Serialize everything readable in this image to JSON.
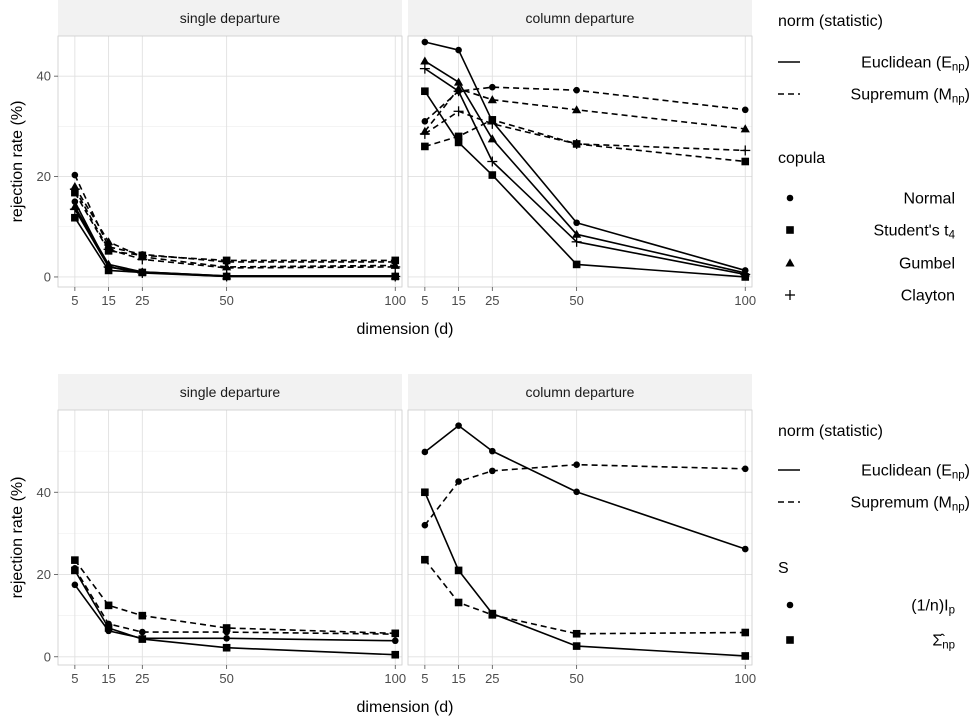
{
  "chart_data": [
    {
      "type": "line",
      "panels": [
        "single departure",
        "column departure"
      ],
      "xlabel": "dimension (d)",
      "ylabel": "rejection rate (%)",
      "x": [
        5,
        15,
        25,
        50,
        100
      ],
      "xlim": [
        0,
        102
      ],
      "ylim": [
        -2,
        48
      ],
      "y_ticks": [
        0,
        20,
        40
      ],
      "grid": true,
      "legend": {
        "placement": "right",
        "norm_title": "norm (statistic)",
        "norm_entries": [
          {
            "key": "euclidean",
            "label_main": "Euclidean (E",
            "label_sub": "np",
            "label_end": ")",
            "dash": "solid"
          },
          {
            "key": "supremum",
            "label_main": "Supremum (M",
            "label_sub": "np",
            "label_end": ")",
            "dash": "dashed"
          }
        ],
        "group_title": "copula",
        "group_entries": [
          {
            "key": "normal",
            "label_main": "Normal",
            "label_sub": "",
            "label_end": "",
            "shape": "circle"
          },
          {
            "key": "student",
            "label_main": "Student's t",
            "label_sub": "4",
            "label_end": "",
            "shape": "square"
          },
          {
            "key": "gumbel",
            "label_main": "Gumbel",
            "label_sub": "",
            "label_end": "",
            "shape": "triangle"
          },
          {
            "key": "clayton",
            "label_main": "Clayton",
            "label_sub": "",
            "label_end": "",
            "shape": "plus"
          }
        ]
      },
      "series": [
        {
          "panel": "single departure",
          "norm": "euclidean",
          "group": "normal",
          "values": [
            15.0,
            2.0,
            1.0,
            0.2,
            0.2
          ]
        },
        {
          "panel": "single departure",
          "norm": "euclidean",
          "group": "student",
          "values": [
            11.8,
            1.3,
            0.9,
            0.1,
            0.1
          ]
        },
        {
          "panel": "single departure",
          "norm": "euclidean",
          "group": "gumbel",
          "values": [
            14.0,
            2.5,
            1.0,
            0.2,
            0.2
          ]
        },
        {
          "panel": "single departure",
          "norm": "euclidean",
          "group": "clayton",
          "values": [
            13.5,
            2.0,
            0.8,
            0.1,
            0.1
          ]
        },
        {
          "panel": "single departure",
          "norm": "supremum",
          "group": "normal",
          "values": [
            20.3,
            6.0,
            4.5,
            3.0,
            3.0
          ]
        },
        {
          "panel": "single departure",
          "norm": "supremum",
          "group": "student",
          "values": [
            16.8,
            5.2,
            4.3,
            3.3,
            3.3
          ]
        },
        {
          "panel": "single departure",
          "norm": "supremum",
          "group": "gumbel",
          "values": [
            18.0,
            7.0,
            4.0,
            2.0,
            2.3
          ]
        },
        {
          "panel": "single departure",
          "norm": "supremum",
          "group": "clayton",
          "values": [
            17.5,
            5.5,
            3.5,
            1.8,
            2.0
          ]
        },
        {
          "panel": "column departure",
          "norm": "euclidean",
          "group": "normal",
          "values": [
            46.8,
            45.2,
            31.0,
            10.8,
            1.3
          ]
        },
        {
          "panel": "column departure",
          "norm": "euclidean",
          "group": "student",
          "values": [
            37.0,
            26.8,
            20.3,
            2.5,
            0.0
          ]
        },
        {
          "panel": "column departure",
          "norm": "euclidean",
          "group": "gumbel",
          "values": [
            43.0,
            38.8,
            27.5,
            8.5,
            0.8
          ]
        },
        {
          "panel": "column departure",
          "norm": "euclidean",
          "group": "clayton",
          "values": [
            41.5,
            37.0,
            23.0,
            7.0,
            0.5
          ]
        },
        {
          "panel": "column departure",
          "norm": "supremum",
          "group": "normal",
          "values": [
            31.0,
            37.0,
            37.8,
            37.2,
            33.3
          ]
        },
        {
          "panel": "column departure",
          "norm": "supremum",
          "group": "student",
          "values": [
            26.0,
            28.0,
            31.3,
            26.5,
            23.0
          ]
        },
        {
          "panel": "column departure",
          "norm": "supremum",
          "group": "gumbel",
          "values": [
            29.0,
            37.5,
            35.3,
            33.3,
            29.5
          ]
        },
        {
          "panel": "column departure",
          "norm": "supremum",
          "group": "clayton",
          "values": [
            28.5,
            33.0,
            30.5,
            26.5,
            25.2
          ]
        }
      ]
    },
    {
      "type": "line",
      "panels": [
        "single departure",
        "column departure"
      ],
      "xlabel": "dimension (d)",
      "ylabel": "rejection rate (%)",
      "x": [
        5,
        15,
        25,
        50,
        100
      ],
      "xlim": [
        0,
        102
      ],
      "ylim": [
        -2,
        60
      ],
      "y_ticks": [
        0,
        20,
        40
      ],
      "grid": true,
      "legend": {
        "placement": "right",
        "norm_title": "norm (statistic)",
        "norm_entries": [
          {
            "key": "euclidean",
            "label_main": "Euclidean (E",
            "label_sub": "np",
            "label_end": ")",
            "dash": "solid"
          },
          {
            "key": "supremum",
            "label_main": "Supremum (M",
            "label_sub": "np",
            "label_end": ")",
            "dash": "dashed"
          }
        ],
        "group_title": "S",
        "group_entries": [
          {
            "key": "identity",
            "label_main": "(1/n)I",
            "label_sub": "p",
            "label_end": "",
            "shape": "circle"
          },
          {
            "key": "sigma",
            "label_main": "Σ̂",
            "label_sub": "np",
            "label_end": "",
            "shape": "square"
          }
        ]
      },
      "series": [
        {
          "panel": "single departure",
          "norm": "euclidean",
          "group": "identity",
          "values": [
            17.5,
            6.3,
            4.5,
            4.5,
            3.9
          ]
        },
        {
          "panel": "single departure",
          "norm": "euclidean",
          "group": "sigma",
          "values": [
            21.0,
            7.0,
            4.3,
            2.2,
            0.5
          ]
        },
        {
          "panel": "single departure",
          "norm": "supremum",
          "group": "identity",
          "values": [
            21.5,
            8.0,
            6.0,
            6.0,
            5.5
          ]
        },
        {
          "panel": "single departure",
          "norm": "supremum",
          "group": "sigma",
          "values": [
            23.5,
            12.5,
            10.0,
            7.0,
            5.7
          ]
        },
        {
          "panel": "column departure",
          "norm": "euclidean",
          "group": "identity",
          "values": [
            49.8,
            56.2,
            50.0,
            40.1,
            26.2
          ]
        },
        {
          "panel": "column departure",
          "norm": "euclidean",
          "group": "sigma",
          "values": [
            40.0,
            21.0,
            10.5,
            2.6,
            0.2
          ]
        },
        {
          "panel": "column departure",
          "norm": "supremum",
          "group": "identity",
          "values": [
            32.0,
            42.6,
            45.2,
            46.7,
            45.7
          ]
        },
        {
          "panel": "column departure",
          "norm": "supremum",
          "group": "sigma",
          "values": [
            23.6,
            13.2,
            10.2,
            5.6,
            5.9
          ]
        }
      ]
    }
  ]
}
